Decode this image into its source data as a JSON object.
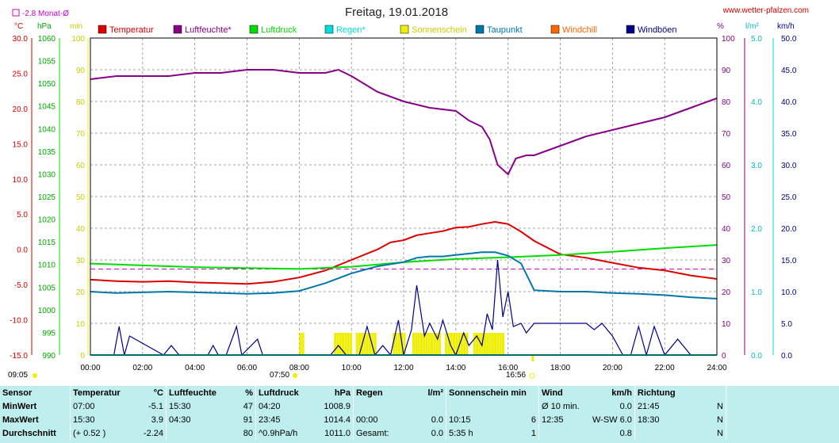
{
  "header": {
    "title": "Freitag, 19.01.2018",
    "site": "www.wetter-pfalzen.com",
    "monthly_avg": "-2.8 Monat-Ø",
    "sunrise": "07:50",
    "sunset": "16:56",
    "time_left": "09:05"
  },
  "axis_units": {
    "temp": "°C",
    "pressure": "hPa",
    "sun": "min",
    "humidity": "%",
    "solar": "l/m²",
    "wind": "km/h"
  },
  "legend": [
    {
      "label": "Temperatur",
      "color": "#dd0000"
    },
    {
      "label": "Luftfeuchte*",
      "color": "#880088"
    },
    {
      "label": "Luftdruck",
      "color": "#00dd00"
    },
    {
      "label": "Regen*",
      "color": "#00dddd"
    },
    {
      "label": "Sonnenschein",
      "color": "#eeee00"
    },
    {
      "label": "Taupunkt",
      "color": "#0077aa"
    },
    {
      "label": "Windchill",
      "color": "#ff6600"
    },
    {
      "label": "Windböen",
      "color": "#000088"
    }
  ],
  "chart_data": {
    "type": "line",
    "x_ticks": [
      "00:00",
      "02:00",
      "04:00",
      "06:00",
      "08:00",
      "10:00",
      "12:00",
      "14:00",
      "16:00",
      "18:00",
      "20:00",
      "22:00",
      "24:00"
    ],
    "y_axes": {
      "temperature": {
        "ticks": [
          "30.0",
          "25.0",
          "20.0",
          "15.0",
          "10.0",
          "5.0",
          "0.0",
          "-5.0",
          "-10.0",
          "-15.0"
        ],
        "range": [
          -15,
          30
        ]
      },
      "pressure": {
        "ticks": [
          "1060",
          "1055",
          "1050",
          "1045",
          "1040",
          "1035",
          "1030",
          "1025",
          "1020",
          "1015",
          "1010",
          "1005",
          "1000",
          "995",
          "990"
        ],
        "range": [
          990,
          1060
        ]
      },
      "sunshine_min": {
        "ticks": [
          "100",
          "90",
          "80",
          "70",
          "60",
          "50",
          "40",
          "30",
          "20",
          "10",
          "0"
        ],
        "range": [
          0,
          100
        ]
      },
      "humidity": {
        "ticks": [
          "100",
          "90",
          "80",
          "70",
          "60",
          "50",
          "40",
          "30",
          "20",
          "10",
          "0"
        ],
        "range": [
          0,
          100
        ]
      },
      "solar": {
        "ticks": [
          "5.0",
          "4.0",
          "3.0",
          "2.0",
          "1.0",
          "0.0"
        ],
        "range": [
          0,
          5
        ]
      },
      "wind": {
        "ticks": [
          "50.0",
          "45.0",
          "40.0",
          "35.0",
          "30.0",
          "25.0",
          "20.0",
          "15.0",
          "10.0",
          "5.0",
          "0.0"
        ],
        "range": [
          0,
          50
        ]
      }
    },
    "series": [
      {
        "name": "Temperatur",
        "color": "#dd0000",
        "axis": "temperature",
        "x": [
          0,
          1,
          2,
          3,
          4,
          5,
          6,
          7,
          8,
          9,
          10,
          11,
          11.5,
          12,
          12.5,
          13,
          13.5,
          14,
          14.5,
          15,
          15.5,
          16,
          16.5,
          17,
          18,
          19,
          20,
          21,
          22,
          23,
          24
        ],
        "y": [
          -4.3,
          -4.5,
          -4.6,
          -4.5,
          -4.7,
          -4.8,
          -4.9,
          -4.6,
          -4.0,
          -3.0,
          -1.5,
          0.0,
          1.0,
          1.3,
          2.0,
          2.3,
          2.6,
          3.1,
          3.2,
          3.6,
          3.9,
          3.6,
          2.5,
          1.2,
          -0.7,
          -1.2,
          -1.9,
          -2.6,
          -3.0,
          -3.7,
          -4.2
        ]
      },
      {
        "name": "Luftfeuchte*",
        "color": "#880088",
        "axis": "humidity",
        "x": [
          0,
          1,
          2,
          3,
          4,
          5,
          6,
          7,
          8,
          9,
          9.5,
          10,
          11,
          12,
          13,
          14,
          14.5,
          15,
          15.3,
          15.6,
          16,
          16.3,
          16.7,
          17,
          18,
          19,
          20,
          21,
          22,
          23,
          24
        ],
        "y": [
          87,
          88,
          88,
          88,
          89,
          89,
          90,
          90,
          89,
          89,
          90,
          88,
          83,
          80,
          78,
          77,
          74,
          72,
          68,
          60,
          57,
          62,
          63,
          63,
          66,
          69,
          71,
          73,
          75,
          78,
          81
        ]
      },
      {
        "name": "Luftdruck",
        "color": "#00dd00",
        "axis": "pressure",
        "x": [
          0,
          2,
          4,
          6,
          8,
          10,
          12,
          14,
          16,
          18,
          20,
          22,
          24
        ],
        "y": [
          1010.2,
          1009.8,
          1009.4,
          1009.2,
          1009.0,
          1009.5,
          1010.5,
          1011.2,
          1011.6,
          1012.1,
          1012.8,
          1013.6,
          1014.3
        ]
      },
      {
        "name": "Taupunkt",
        "color": "#0077aa",
        "axis": "temperature",
        "x": [
          0,
          1,
          2,
          3,
          4,
          5,
          6,
          7,
          8,
          9,
          10,
          11,
          12,
          12.5,
          13,
          13.5,
          14,
          14.5,
          15,
          15.5,
          16,
          16.5,
          17,
          18,
          19,
          20,
          21,
          22,
          23,
          24
        ],
        "y": [
          -6.0,
          -6.2,
          -6.1,
          -6.0,
          -6.1,
          -6.2,
          -6.3,
          -6.2,
          -5.9,
          -4.8,
          -3.4,
          -2.4,
          -1.8,
          -1.2,
          -1.0,
          -1.0,
          -0.8,
          -0.6,
          -0.4,
          -0.4,
          -0.9,
          -2.0,
          -5.8,
          -6.0,
          -6.0,
          -6.2,
          -6.3,
          -6.5,
          -6.8,
          -7.0
        ]
      },
      {
        "name": "Windböen",
        "color": "#000088",
        "axis": "wind",
        "x": [
          0,
          0.9,
          1.1,
          1.3,
          1.5,
          2.8,
          3.1,
          3.4,
          4.5,
          4.7,
          4.9,
          5.2,
          5.6,
          5.8,
          6.4,
          6.6,
          6.8,
          7.6,
          8,
          9.2,
          9.5,
          9.8,
          10.3,
          10.6,
          10.9,
          11.2,
          11.5,
          11.8,
          12.0,
          12.3,
          12.5,
          12.8,
          13.0,
          13.3,
          13.5,
          13.8,
          14.0,
          14.3,
          14.5,
          14.8,
          15.0,
          15.2,
          15.4,
          15.6,
          15.8,
          16.0,
          16.2,
          16.5,
          16.7,
          17.0,
          17.5,
          18.0,
          18.5,
          19.0,
          19.3,
          19.6,
          20.0,
          20.4,
          20.7,
          21.0,
          21.3,
          21.6,
          22.0,
          22.5,
          23,
          24
        ],
        "y": [
          0,
          0,
          4.5,
          0,
          3,
          0,
          1.5,
          0,
          0,
          1.5,
          0,
          0,
          4.5,
          0,
          2.5,
          0,
          0,
          0,
          0,
          0,
          1.5,
          0,
          0,
          4.5,
          0,
          1.5,
          0,
          5.5,
          0,
          4,
          11,
          3,
          5,
          2.5,
          5.5,
          1.5,
          0,
          3.5,
          1.5,
          3,
          1.5,
          6.5,
          4,
          15,
          6,
          10,
          4.5,
          5,
          3.5,
          5,
          5,
          5,
          5,
          5,
          4,
          5,
          3,
          0,
          0,
          4.5,
          0,
          4.5,
          0,
          2.5,
          0,
          0
        ]
      },
      {
        "name": "Regen*",
        "color": "#00dddd",
        "axis": "solar",
        "x": [
          0,
          24
        ],
        "y": [
          0,
          0
        ]
      }
    ],
    "sunshine_intervals": [
      [
        "08:00",
        "08:10"
      ],
      [
        "09:20",
        "10:00"
      ],
      [
        "10:10",
        "10:55"
      ],
      [
        "11:35",
        "12:00"
      ],
      [
        "12:20",
        "13:20"
      ],
      [
        "13:35",
        "14:25"
      ],
      [
        "14:40",
        "15:50"
      ]
    ],
    "reference_line": {
      "label": "-2.8 Monat-Ø",
      "value": -2.8,
      "axis": "temperature"
    }
  },
  "table": {
    "headers": [
      "Sensor",
      "Temperatur",
      "°C",
      "Luftfeuchte",
      "%",
      "Luftdruck",
      "hPa",
      "Regen",
      "l/m²",
      "Sonnenschein min",
      "Wind",
      "km/h",
      "Richtung"
    ],
    "rows": [
      {
        "label": "MinWert",
        "temp_time": "07:00",
        "temp_val": "-5.1",
        "hum_time": "15:30",
        "hum_val": "47",
        "press_time": "04:20",
        "press_val": "1008.9",
        "rain_time": "",
        "rain_val": "",
        "sun_time": "",
        "sun_val": "",
        "wind_time": "Ø 10 min.",
        "wind_val": "0.0",
        "dir_time": "21:45",
        "dir_val": "N"
      },
      {
        "label": "MaxWert",
        "temp_time": "15:30",
        "temp_val": "3.9",
        "hum_time": "04:30",
        "hum_val": "91",
        "press_time": "23:45",
        "press_val": "1014.4",
        "rain_time": "00:00",
        "rain_val": "0.0",
        "sun_time": "10:15",
        "sun_val": "6",
        "wind_time": "12:35",
        "wind_val": "W-SW 6.0",
        "dir_time": "18:30",
        "dir_val": "N"
      },
      {
        "label": "Durchschnitt",
        "temp_time": "(+ 0.52 )",
        "temp_val": "-2.24",
        "hum_time": "",
        "hum_val": "80",
        "press_time": "^0.9hPa/h",
        "press_val": "1011.0",
        "rain_time": "Gesamt:",
        "rain_val": "0.0",
        "sun_time": "5:35 h",
        "sun_val": "1",
        "wind_time": "",
        "wind_val": "0.8",
        "dir_time": "",
        "dir_val": "N"
      }
    ]
  }
}
